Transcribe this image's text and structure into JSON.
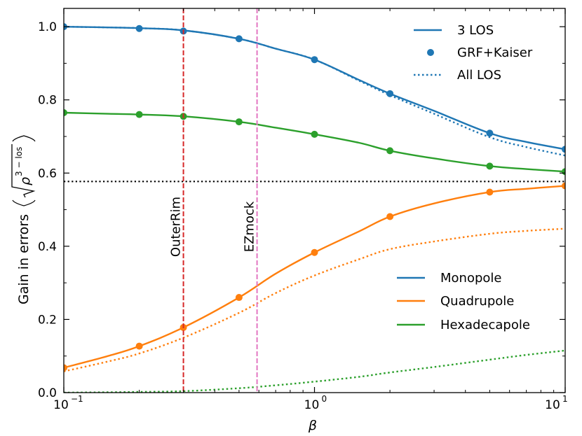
{
  "chart_data": {
    "type": "line",
    "xscale": "log",
    "xlim": [
      0.1,
      10
    ],
    "ylim": [
      0.0,
      1.05
    ],
    "xlabel": "β",
    "ylabel_text": "Gain in errors",
    "ylabel_math": "√ρ^(3−los)",
    "ylabel_radicand_base": "ρ",
    "ylabel_radicand_exp": "3 − los",
    "xticks": [
      {
        "value": 0.1,
        "base": "10",
        "exp": "−1"
      },
      {
        "value": 1,
        "base": "10",
        "exp": "0"
      },
      {
        "value": 10,
        "base": "10",
        "exp": "1"
      }
    ],
    "yticks": [
      {
        "value": 0.0,
        "label": "0.0"
      },
      {
        "value": 0.2,
        "label": "0.2"
      },
      {
        "value": 0.4,
        "label": "0.4"
      },
      {
        "value": 0.6,
        "label": "0.6"
      },
      {
        "value": 0.8,
        "label": "0.8"
      },
      {
        "value": 1.0,
        "label": "1.0"
      }
    ],
    "colors": {
      "monopole": "#1f77b4",
      "quadrupole": "#ff7f0e",
      "hexadecapole": "#2ca02c",
      "outerrim": "#d62728",
      "ezmock": "#e377c2",
      "reference": "#000000"
    },
    "series": [
      {
        "name": "Monopole",
        "key": "monopole",
        "style": "3 LOS",
        "x": [
          0.1,
          0.15,
          0.2,
          0.3,
          0.5,
          0.7,
          1,
          1.5,
          2,
          3,
          5,
          7,
          10
        ],
        "y": [
          1.0,
          0.998,
          0.996,
          0.99,
          0.967,
          0.94,
          0.91,
          0.855,
          0.817,
          0.77,
          0.709,
          0.685,
          0.665
        ]
      },
      {
        "name": "Monopole",
        "key": "monopole",
        "style": "All LOS",
        "x": [
          0.1,
          0.15,
          0.2,
          0.3,
          0.5,
          0.7,
          1,
          1.5,
          2,
          3,
          5,
          7,
          10
        ],
        "y": [
          1.0,
          0.998,
          0.996,
          0.99,
          0.967,
          0.94,
          0.91,
          0.853,
          0.813,
          0.762,
          0.698,
          0.671,
          0.648
        ]
      },
      {
        "name": "Monopole",
        "key": "monopole",
        "style": "GRF+Kaiser",
        "x": [
          0.1,
          0.2,
          0.3,
          0.5,
          1,
          2,
          5,
          10
        ],
        "y": [
          1.0,
          0.995,
          0.988,
          0.967,
          0.91,
          0.817,
          0.709,
          0.665
        ]
      },
      {
        "name": "Quadrupole",
        "key": "quadrupole",
        "style": "3 LOS",
        "x": [
          0.1,
          0.15,
          0.2,
          0.3,
          0.5,
          0.7,
          1,
          1.5,
          2,
          3,
          5,
          7,
          10
        ],
        "y": [
          0.068,
          0.1,
          0.127,
          0.178,
          0.26,
          0.325,
          0.383,
          0.44,
          0.481,
          0.517,
          0.548,
          0.557,
          0.565
        ]
      },
      {
        "name": "Quadrupole",
        "key": "quadrupole",
        "style": "All LOS",
        "x": [
          0.1,
          0.15,
          0.2,
          0.3,
          0.5,
          0.7,
          1,
          1.5,
          2,
          3,
          5,
          7,
          10
        ],
        "y": [
          0.058,
          0.085,
          0.107,
          0.15,
          0.218,
          0.272,
          0.32,
          0.364,
          0.392,
          0.413,
          0.434,
          0.442,
          0.448
        ]
      },
      {
        "name": "Quadrupole",
        "key": "quadrupole",
        "style": "GRF+Kaiser",
        "x": [
          0.1,
          0.2,
          0.3,
          0.5,
          1,
          2,
          5,
          10
        ],
        "y": [
          0.068,
          0.127,
          0.178,
          0.26,
          0.383,
          0.481,
          0.548,
          0.565
        ]
      },
      {
        "name": "Hexadecapole",
        "key": "hexadecapole",
        "style": "3 LOS",
        "x": [
          0.1,
          0.15,
          0.2,
          0.3,
          0.5,
          0.7,
          1,
          1.5,
          2,
          3,
          5,
          7,
          10
        ],
        "y": [
          0.765,
          0.762,
          0.76,
          0.755,
          0.74,
          0.724,
          0.706,
          0.683,
          0.661,
          0.64,
          0.619,
          0.611,
          0.604
        ]
      },
      {
        "name": "Hexadecapole",
        "key": "hexadecapole",
        "style": "All LOS",
        "x": [
          0.1,
          0.15,
          0.2,
          0.3,
          0.5,
          0.7,
          1,
          1.5,
          2,
          3,
          5,
          7,
          10
        ],
        "y": [
          0.0,
          0.001,
          0.002,
          0.004,
          0.012,
          0.02,
          0.03,
          0.043,
          0.055,
          0.07,
          0.09,
          0.103,
          0.115
        ]
      },
      {
        "name": "Hexadecapole",
        "key": "hexadecapole",
        "style": "GRF+Kaiser",
        "x": [
          0.1,
          0.2,
          0.3,
          0.5,
          1,
          2,
          5,
          10
        ],
        "y": [
          0.765,
          0.76,
          0.755,
          0.74,
          0.706,
          0.661,
          0.619,
          0.604
        ]
      }
    ],
    "reference_line": {
      "y": 0.577,
      "style": "dotted",
      "color": "#000000"
    },
    "vertical_lines": [
      {
        "x": 0.3,
        "label": "OuterRim",
        "style": "dashed",
        "key": "outerrim"
      },
      {
        "x": 0.59,
        "label": "EZmock",
        "style": "dashed",
        "key": "ezmock"
      }
    ],
    "legend_style": {
      "location": "top-right",
      "entries": [
        {
          "label": "3 LOS",
          "marker": "line"
        },
        {
          "label": "GRF+Kaiser",
          "marker": "point"
        },
        {
          "label": "All LOS",
          "marker": "dotted"
        }
      ]
    },
    "legend_multipoles": {
      "location": "center-right",
      "entries": [
        {
          "label": "Monopole",
          "key": "monopole"
        },
        {
          "label": "Quadrupole",
          "key": "quadrupole"
        },
        {
          "label": "Hexadecapole",
          "key": "hexadecapole"
        }
      ]
    }
  }
}
